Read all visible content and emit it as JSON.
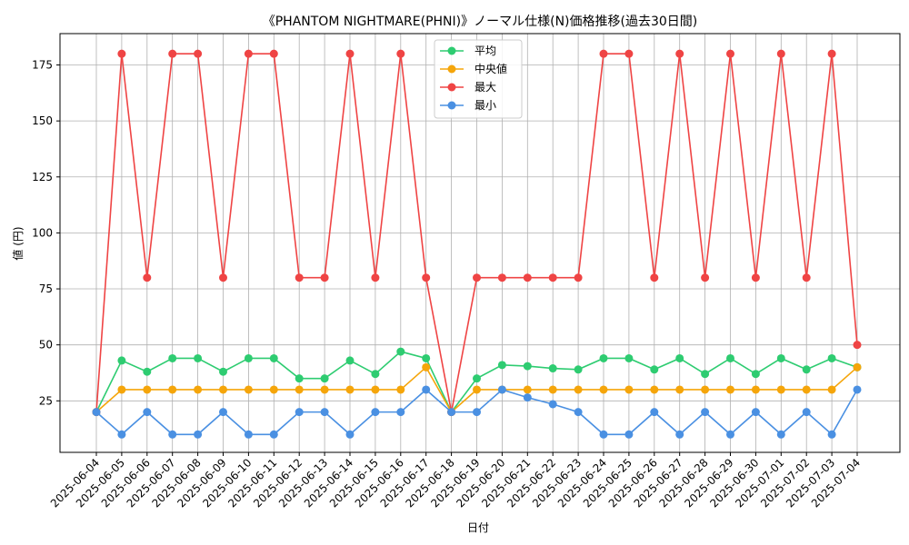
{
  "chart_data": {
    "type": "line",
    "title": "《PHANTOM NIGHTMARE(PHNI)》ノーマル仕様(N)価格推移(過去30日間)",
    "xlabel": "日付",
    "ylabel": "値 (円)",
    "ylim": [
      2,
      189
    ],
    "yticks": [
      25,
      50,
      75,
      100,
      125,
      150,
      175
    ],
    "grid": true,
    "legend_position": "top-center",
    "categories": [
      "2025-06-04",
      "2025-06-05",
      "2025-06-06",
      "2025-06-07",
      "2025-06-08",
      "2025-06-09",
      "2025-06-10",
      "2025-06-11",
      "2025-06-12",
      "2025-06-13",
      "2025-06-14",
      "2025-06-15",
      "2025-06-16",
      "2025-06-17",
      "2025-06-18",
      "2025-06-19",
      "2025-06-20",
      "2025-06-21",
      "2025-06-22",
      "2025-06-23",
      "2025-06-24",
      "2025-06-25",
      "2025-06-26",
      "2025-06-27",
      "2025-06-28",
      "2025-06-29",
      "2025-06-30",
      "2025-07-01",
      "2025-07-02",
      "2025-07-03",
      "2025-07-04"
    ],
    "series": [
      {
        "name": "平均",
        "color": "#2ecc71",
        "values": [
          20,
          43,
          38,
          44,
          44,
          38,
          44,
          44,
          35,
          35,
          43,
          37,
          47,
          44,
          20,
          35,
          41,
          40.5,
          39.5,
          39,
          44,
          44,
          39,
          44,
          37,
          44,
          37,
          44,
          39,
          44,
          40
        ]
      },
      {
        "name": "中央値",
        "color": "#f5a50a",
        "values": [
          20,
          30,
          30,
          30,
          30,
          30,
          30,
          30,
          30,
          30,
          30,
          30,
          30,
          40,
          20,
          30,
          30,
          30,
          30,
          30,
          30,
          30,
          30,
          30,
          30,
          30,
          30,
          30,
          30,
          30,
          40
        ]
      },
      {
        "name": "最大",
        "color": "#ef4444",
        "values": [
          20,
          180,
          80,
          180,
          180,
          80,
          180,
          180,
          80,
          80,
          180,
          80,
          180,
          80,
          20,
          80,
          80,
          80,
          80,
          80,
          180,
          180,
          80,
          180,
          80,
          180,
          80,
          180,
          80,
          180,
          50
        ]
      },
      {
        "name": "最小",
        "color": "#4a90e2",
        "values": [
          20,
          10,
          20,
          10,
          10,
          20,
          10,
          10,
          20,
          20,
          10,
          20,
          20,
          30,
          20,
          20,
          30,
          26.5,
          23.5,
          20,
          10,
          10,
          20,
          10,
          20,
          10,
          20,
          10,
          20,
          10,
          30
        ]
      }
    ]
  }
}
